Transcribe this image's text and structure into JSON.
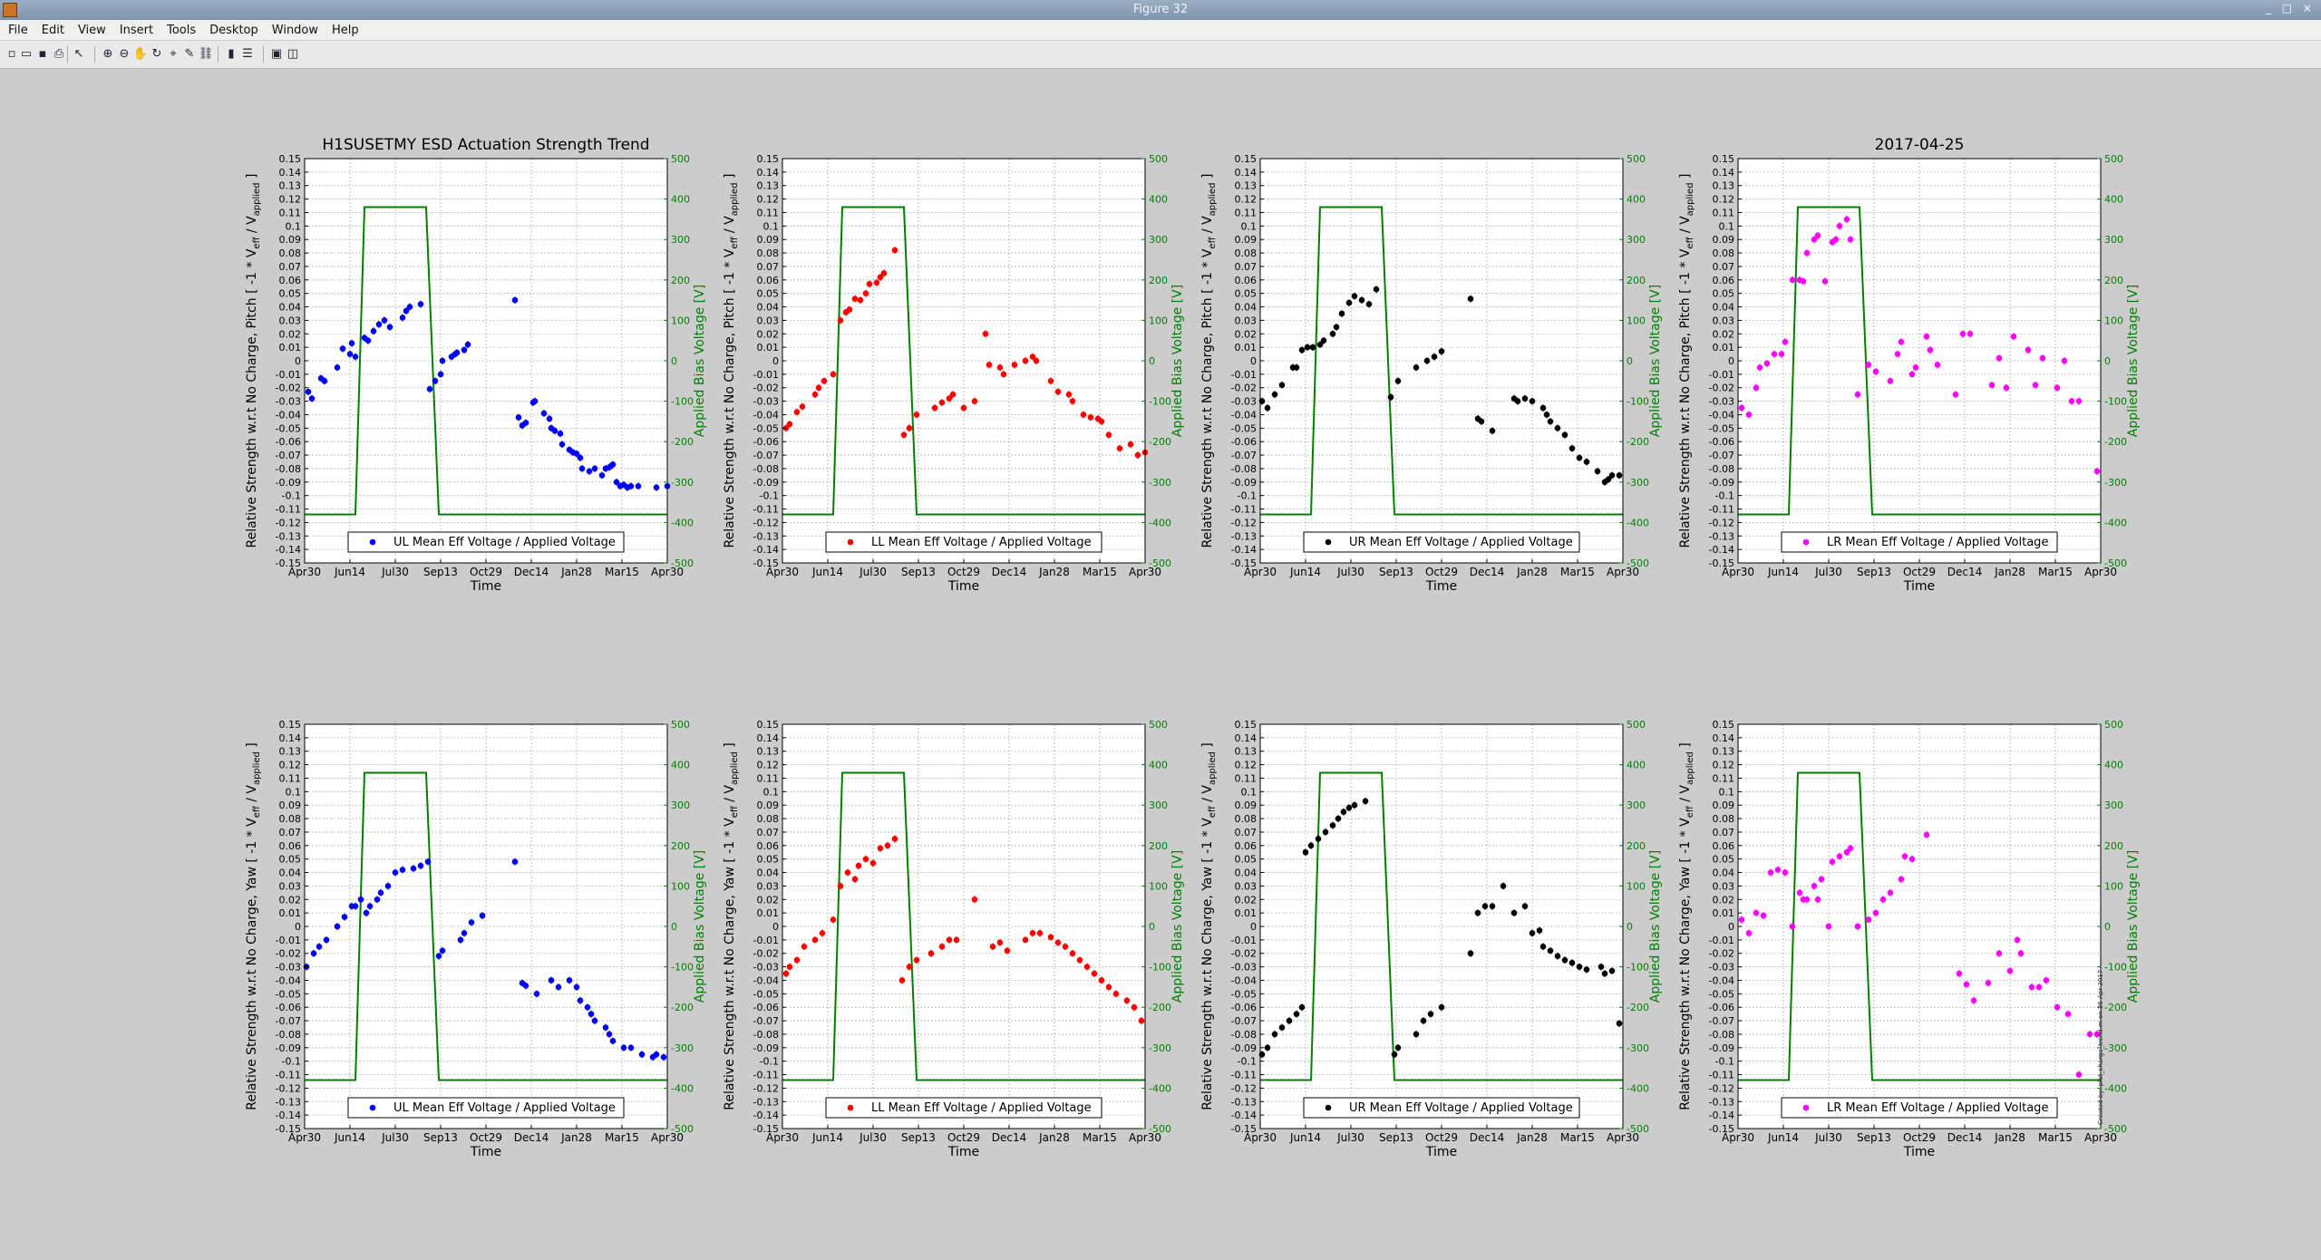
{
  "window": {
    "title": "Figure 32"
  },
  "menu": [
    "File",
    "Edit",
    "View",
    "Insert",
    "Tools",
    "Desktop",
    "Window",
    "Help"
  ],
  "toolbar": [
    {
      "name": "new-figure-icon",
      "glyph": "▫"
    },
    {
      "name": "open-file-icon",
      "glyph": "▭"
    },
    {
      "name": "save-icon",
      "glyph": "▪"
    },
    {
      "name": "print-icon",
      "glyph": "⎙"
    },
    {
      "name": "edit-plot-arrow-icon",
      "glyph": "↖"
    },
    {
      "name": "zoom-in-icon",
      "glyph": "⊕"
    },
    {
      "name": "zoom-out-icon",
      "glyph": "⊖"
    },
    {
      "name": "pan-hand-icon",
      "glyph": "✋"
    },
    {
      "name": "rotate-3d-icon",
      "glyph": "↻"
    },
    {
      "name": "data-cursor-icon",
      "glyph": "⌖"
    },
    {
      "name": "brush-icon",
      "glyph": "✎"
    },
    {
      "name": "link-plot-icon",
      "glyph": "⛓"
    },
    {
      "name": "insert-colorbar-icon",
      "glyph": "▮"
    },
    {
      "name": "insert-legend-icon",
      "glyph": "☰"
    },
    {
      "name": "hide-plot-tools-icon",
      "glyph": "▣"
    },
    {
      "name": "show-plot-tools-icon",
      "glyph": "◫"
    }
  ],
  "colors": {
    "UL": "#0000ff",
    "LL": "#ff0000",
    "UR": "#000000",
    "LR": "#ff00ff",
    "voltage": "#008000",
    "grid": "#b4b4b4"
  },
  "figure": {
    "title_left": "H1SUSETMY ESD Actuation Strength Trend",
    "title_right": "2017-04-25",
    "xlabel": "Time",
    "ylabel_right": "Applied Bias Voltage [V]",
    "ylabel_pitch_prefix": "Relative Strength w.r.t No Charge, Pitch [ -1 * V",
    "ylabel_yaw_prefix": "Relative Strength w.r.t No Charge, Yaw [ -1 * V",
    "ylabel_sub_eff": "eff",
    "ylabel_mid": " / V",
    "ylabel_sub_applied": "applied",
    "ylabel_suffix": " ]",
    "side_note": "Created by: plot_charge_trend.m on 25-Apr-2017"
  },
  "chart_data": {
    "type": "scatter",
    "x_ticks": [
      "Apr30",
      "Jun14",
      "Jul30",
      "Sep13",
      "Oct29",
      "Dec14",
      "Jan28",
      "Mar15",
      "Apr30"
    ],
    "x_range": [
      "2016-04-30",
      "2017-04-30"
    ],
    "ylim_left": [
      -0.15,
      0.15
    ],
    "y_ticks_left": [
      "0.15",
      "0.14",
      "0.13",
      "0.12",
      "0.11",
      "0.1",
      "0.09",
      "0.08",
      "0.07",
      "0.06",
      "0.05",
      "0.04",
      "0.03",
      "0.02",
      "0.01",
      "0",
      "-0.01",
      "-0.02",
      "-0.03",
      "-0.04",
      "-0.05",
      "-0.06",
      "-0.07",
      "-0.08",
      "-0.09",
      "-0.1",
      "-0.11",
      "-0.12",
      "-0.13",
      "-0.14",
      "-0.15"
    ],
    "ylim_right": [
      -500,
      500
    ],
    "y_ticks_right": [
      "500",
      "400",
      "300",
      "200",
      "100",
      "0",
      "-100",
      "-200",
      "-300",
      "-400",
      "-500"
    ],
    "grid": true,
    "legend_location": "bottom-center",
    "bias_voltage": {
      "x_frac": [
        0,
        0.14,
        0.165,
        0.335,
        0.37,
        1
      ],
      "y": [
        -380,
        -380,
        380,
        380,
        -380,
        -380
      ]
    },
    "panels": [
      {
        "id": "UL-pitch",
        "quadrant": "UL",
        "legend": "UL Mean Eff Voltage / Applied Voltage",
        "x_frac": [
          0.01,
          0.02,
          0.045,
          0.055,
          0.09,
          0.105,
          0.125,
          0.13,
          0.14,
          0.165,
          0.175,
          0.19,
          0.205,
          0.22,
          0.235,
          0.27,
          0.28,
          0.29,
          0.32,
          0.345,
          0.36,
          0.375,
          0.38,
          0.405,
          0.415,
          0.42,
          0.44,
          0.45,
          0.58,
          0.59,
          0.6,
          0.61,
          0.63,
          0.635,
          0.66,
          0.675,
          0.68,
          0.69,
          0.705,
          0.71,
          0.73,
          0.74,
          0.75,
          0.76,
          0.765,
          0.785,
          0.8,
          0.82,
          0.83,
          0.84,
          0.845,
          0.85,
          0.86,
          0.87,
          0.88,
          0.89,
          0.9,
          0.92,
          0.97,
          1.0
        ],
        "y": [
          -0.023,
          -0.028,
          -0.013,
          -0.015,
          -0.005,
          0.009,
          0.005,
          0.013,
          0.003,
          0.017,
          0.015,
          0.022,
          0.027,
          0.03,
          0.025,
          0.032,
          0.037,
          0.04,
          0.042,
          -0.021,
          -0.015,
          -0.01,
          0,
          0.003,
          0.005,
          0.006,
          0.008,
          0.012,
          0.045,
          -0.042,
          -0.048,
          -0.046,
          -0.031,
          -0.03,
          -0.039,
          -0.043,
          -0.05,
          -0.052,
          -0.054,
          -0.062,
          -0.066,
          -0.068,
          -0.069,
          -0.072,
          -0.08,
          -0.082,
          -0.08,
          -0.085,
          -0.08,
          -0.079,
          -0.078,
          -0.077,
          -0.09,
          -0.093,
          -0.092,
          -0.094,
          -0.093,
          -0.093,
          -0.094,
          -0.093
        ]
      },
      {
        "id": "LL-pitch",
        "quadrant": "LL",
        "legend": "LL Mean Eff Voltage / Applied Voltage",
        "x_frac": [
          0.01,
          0.02,
          0.04,
          0.055,
          0.09,
          0.1,
          0.115,
          0.14,
          0.16,
          0.175,
          0.185,
          0.2,
          0.215,
          0.23,
          0.24,
          0.26,
          0.27,
          0.28,
          0.31,
          0.335,
          0.35,
          0.37,
          0.42,
          0.44,
          0.46,
          0.47,
          0.5,
          0.53,
          0.56,
          0.57,
          0.6,
          0.61,
          0.64,
          0.67,
          0.69,
          0.7,
          0.74,
          0.76,
          0.79,
          0.8,
          0.83,
          0.85,
          0.87,
          0.88,
          0.9,
          0.93,
          0.96,
          0.98,
          1.0
        ],
        "y": [
          -0.05,
          -0.047,
          -0.038,
          -0.034,
          -0.025,
          -0.02,
          -0.015,
          -0.01,
          0.03,
          0.036,
          0.038,
          0.046,
          0.045,
          0.05,
          0.057,
          0.058,
          0.062,
          0.065,
          0.082,
          -0.055,
          -0.05,
          -0.04,
          -0.035,
          -0.031,
          -0.028,
          -0.025,
          -0.035,
          -0.03,
          0.02,
          -0.003,
          -0.005,
          -0.01,
          -0.003,
          0.0,
          0.003,
          0.0,
          -0.015,
          -0.023,
          -0.025,
          -0.03,
          -0.04,
          -0.042,
          -0.043,
          -0.045,
          -0.055,
          -0.065,
          -0.062,
          -0.07,
          -0.068
        ]
      },
      {
        "id": "UR-pitch",
        "quadrant": "UR",
        "legend": "UR Mean Eff Voltage / Applied Voltage",
        "x_frac": [
          0.005,
          0.02,
          0.04,
          0.06,
          0.09,
          0.1,
          0.115,
          0.13,
          0.145,
          0.165,
          0.175,
          0.2,
          0.21,
          0.225,
          0.245,
          0.26,
          0.28,
          0.3,
          0.32,
          0.36,
          0.38,
          0.43,
          0.46,
          0.48,
          0.5,
          0.58,
          0.6,
          0.61,
          0.64,
          0.7,
          0.71,
          0.73,
          0.75,
          0.78,
          0.79,
          0.8,
          0.82,
          0.84,
          0.86,
          0.88,
          0.9,
          0.93,
          0.95,
          0.96,
          0.97,
          0.99
        ],
        "y": [
          -0.03,
          -0.035,
          -0.025,
          -0.018,
          -0.005,
          -0.005,
          0.008,
          0.01,
          0.01,
          0.012,
          0.015,
          0.02,
          0.025,
          0.035,
          0.043,
          0.048,
          0.045,
          0.042,
          0.053,
          -0.027,
          -0.015,
          -0.005,
          0,
          0.003,
          0.007,
          0.046,
          -0.043,
          -0.045,
          -0.052,
          -0.028,
          -0.03,
          -0.028,
          -0.03,
          -0.035,
          -0.04,
          -0.045,
          -0.05,
          -0.055,
          -0.065,
          -0.072,
          -0.075,
          -0.082,
          -0.09,
          -0.088,
          -0.085,
          -0.085
        ]
      },
      {
        "id": "LR-pitch",
        "quadrant": "LR",
        "legend": "LR Mean Eff Voltage / Applied Voltage",
        "x_frac": [
          0.01,
          0.03,
          0.05,
          0.06,
          0.08,
          0.1,
          0.12,
          0.13,
          0.15,
          0.17,
          0.18,
          0.19,
          0.21,
          0.22,
          0.24,
          0.26,
          0.27,
          0.28,
          0.3,
          0.31,
          0.33,
          0.36,
          0.38,
          0.42,
          0.44,
          0.45,
          0.48,
          0.49,
          0.52,
          0.53,
          0.55,
          0.6,
          0.62,
          0.64,
          0.7,
          0.72,
          0.74,
          0.76,
          0.8,
          0.82,
          0.84,
          0.88,
          0.9,
          0.92,
          0.94,
          0.99
        ],
        "y": [
          -0.035,
          -0.04,
          -0.02,
          -0.005,
          -0.002,
          0.005,
          0.005,
          0.014,
          0.06,
          0.06,
          0.059,
          0.08,
          0.09,
          0.093,
          0.059,
          0.088,
          0.09,
          0.1,
          0.105,
          0.09,
          -0.025,
          -0.003,
          -0.008,
          -0.015,
          0.005,
          0.014,
          -0.01,
          -0.005,
          0.018,
          0.008,
          -0.003,
          -0.025,
          0.02,
          0.02,
          -0.018,
          0.002,
          -0.02,
          0.018,
          0.008,
          -0.018,
          0.002,
          -0.02,
          0,
          -0.03,
          -0.03,
          -0.082
        ]
      },
      {
        "id": "UL-yaw",
        "quadrant": "UL",
        "legend": "UL Mean Eff Voltage / Applied Voltage",
        "x_frac": [
          0.005,
          0.025,
          0.04,
          0.06,
          0.09,
          0.11,
          0.13,
          0.14,
          0.155,
          0.17,
          0.18,
          0.2,
          0.21,
          0.23,
          0.25,
          0.27,
          0.3,
          0.32,
          0.34,
          0.37,
          0.38,
          0.43,
          0.44,
          0.46,
          0.49,
          0.58,
          0.6,
          0.61,
          0.64,
          0.68,
          0.7,
          0.73,
          0.75,
          0.76,
          0.78,
          0.79,
          0.8,
          0.83,
          0.84,
          0.85,
          0.88,
          0.9,
          0.93,
          0.96,
          0.97,
          0.99
        ],
        "y": [
          -0.03,
          -0.02,
          -0.015,
          -0.01,
          0.0,
          0.007,
          0.015,
          0.015,
          0.02,
          0.01,
          0.015,
          0.02,
          0.025,
          0.03,
          0.04,
          0.042,
          0.043,
          0.045,
          0.048,
          -0.022,
          -0.018,
          -0.01,
          -0.005,
          0.003,
          0.008,
          0.048,
          -0.042,
          -0.044,
          -0.05,
          -0.04,
          -0.045,
          -0.04,
          -0.045,
          -0.055,
          -0.06,
          -0.065,
          -0.07,
          -0.075,
          -0.08,
          -0.085,
          -0.09,
          -0.09,
          -0.095,
          -0.097,
          -0.095,
          -0.097
        ]
      },
      {
        "id": "LL-yaw",
        "quadrant": "LL",
        "legend": "LL Mean Eff Voltage / Applied Voltage",
        "x_frac": [
          0.01,
          0.02,
          0.04,
          0.06,
          0.09,
          0.11,
          0.14,
          0.16,
          0.18,
          0.2,
          0.21,
          0.23,
          0.25,
          0.27,
          0.29,
          0.31,
          0.33,
          0.35,
          0.37,
          0.41,
          0.44,
          0.46,
          0.48,
          0.53,
          0.58,
          0.6,
          0.62,
          0.67,
          0.69,
          0.71,
          0.74,
          0.76,
          0.78,
          0.8,
          0.82,
          0.84,
          0.86,
          0.88,
          0.9,
          0.92,
          0.95,
          0.97,
          0.99
        ],
        "y": [
          -0.035,
          -0.03,
          -0.025,
          -0.015,
          -0.01,
          -0.005,
          0.005,
          0.03,
          0.04,
          0.035,
          0.045,
          0.05,
          0.047,
          0.058,
          0.06,
          0.065,
          -0.04,
          -0.03,
          -0.025,
          -0.02,
          -0.015,
          -0.01,
          -0.01,
          0.02,
          -0.015,
          -0.012,
          -0.018,
          -0.01,
          -0.005,
          -0.005,
          -0.008,
          -0.012,
          -0.015,
          -0.02,
          -0.025,
          -0.03,
          -0.035,
          -0.04,
          -0.045,
          -0.05,
          -0.055,
          -0.06,
          -0.07
        ]
      },
      {
        "id": "UR-yaw",
        "quadrant": "UR",
        "legend": "UR Mean Eff Voltage / Applied Voltage",
        "x_frac": [
          0.005,
          0.02,
          0.04,
          0.06,
          0.08,
          0.1,
          0.115,
          0.125,
          0.14,
          0.16,
          0.18,
          0.2,
          0.215,
          0.23,
          0.245,
          0.26,
          0.29,
          0.37,
          0.38,
          0.43,
          0.45,
          0.47,
          0.5,
          0.58,
          0.6,
          0.62,
          0.64,
          0.67,
          0.7,
          0.73,
          0.75,
          0.77,
          0.78,
          0.8,
          0.82,
          0.84,
          0.86,
          0.88,
          0.9,
          0.94,
          0.95,
          0.97,
          0.99
        ],
        "y": [
          -0.095,
          -0.09,
          -0.08,
          -0.075,
          -0.07,
          -0.065,
          -0.06,
          0.055,
          0.06,
          0.065,
          0.07,
          0.075,
          0.08,
          0.085,
          0.088,
          0.09,
          0.093,
          -0.095,
          -0.09,
          -0.08,
          -0.07,
          -0.065,
          -0.06,
          -0.02,
          0.01,
          0.015,
          0.015,
          0.03,
          0.01,
          0.015,
          -0.005,
          -0.003,
          -0.015,
          -0.018,
          -0.022,
          -0.025,
          -0.027,
          -0.03,
          -0.032,
          -0.03,
          -0.035,
          -0.033,
          -0.072
        ]
      },
      {
        "id": "LR-yaw",
        "quadrant": "LR",
        "legend": "LR Mean Eff Voltage / Applied Voltage",
        "x_frac": [
          0.01,
          0.03,
          0.05,
          0.07,
          0.09,
          0.11,
          0.13,
          0.15,
          0.17,
          0.18,
          0.19,
          0.21,
          0.22,
          0.23,
          0.25,
          0.26,
          0.28,
          0.3,
          0.31,
          0.33,
          0.36,
          0.38,
          0.4,
          0.42,
          0.45,
          0.46,
          0.48,
          0.52,
          0.61,
          0.63,
          0.65,
          0.69,
          0.72,
          0.75,
          0.77,
          0.78,
          0.81,
          0.83,
          0.85,
          0.88,
          0.91,
          0.94,
          0.97,
          0.99
        ],
        "y": [
          0.005,
          -0.005,
          0.01,
          0.008,
          0.04,
          0.042,
          0.04,
          0.0,
          0.025,
          0.02,
          0.02,
          0.03,
          0.02,
          0.035,
          0.0,
          0.048,
          0.052,
          0.055,
          0.058,
          0.0,
          0.005,
          0.01,
          0.02,
          0.025,
          0.035,
          0.052,
          0.05,
          0.068,
          -0.035,
          -0.043,
          -0.055,
          -0.042,
          -0.02,
          -0.033,
          -0.01,
          -0.02,
          -0.045,
          -0.045,
          -0.04,
          -0.06,
          -0.065,
          -0.11,
          -0.08,
          -0.08
        ]
      }
    ]
  }
}
